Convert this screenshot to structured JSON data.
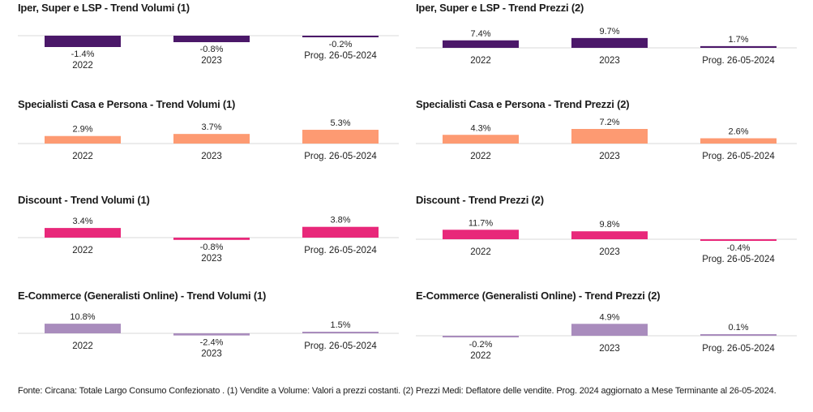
{
  "footer": "Fonte: Circana: Totale Largo Consumo Confezionato . (1) Vendite a Volume: Valori a prezzi costanti. (2) Prezzi Medi: Deflatore delle vendite. Prog. 2024 aggiornato a Mese Terminante al 26-05-2024.",
  "chart_data": [
    {
      "type": "bar",
      "title": "Iper, Super e LSP - Trend Volumi (1)",
      "categories": [
        "2022",
        "2023",
        "Prog. 26-05-2024"
      ],
      "values": [
        -1.4,
        -0.8,
        -0.2
      ],
      "labels": [
        "-1.4%",
        "-0.8%",
        "-0.2%"
      ],
      "color": "#4b1869"
    },
    {
      "type": "bar",
      "title": "Iper, Super e LSP - Trend Prezzi (2)",
      "categories": [
        "2022",
        "2023",
        "Prog. 26-05-2024"
      ],
      "values": [
        7.4,
        9.7,
        1.7
      ],
      "labels": [
        "7.4%",
        "9.7%",
        "1.7%"
      ],
      "color": "#4b1869"
    },
    {
      "type": "bar",
      "title": "Specialisti Casa e Persona - Trend Volumi (1)",
      "categories": [
        "2022",
        "2023",
        "Prog. 26-05-2024"
      ],
      "values": [
        2.9,
        3.7,
        5.3
      ],
      "labels": [
        "2.9%",
        "3.7%",
        "5.3%"
      ],
      "color": "#fd9a72"
    },
    {
      "type": "bar",
      "title": "Specialisti Casa e Persona - Trend Prezzi (2)",
      "categories": [
        "2022",
        "2023",
        "Prog. 26-05-2024"
      ],
      "values": [
        4.3,
        7.2,
        2.6
      ],
      "labels": [
        "4.3%",
        "7.2%",
        "2.6%"
      ],
      "color": "#fd9a72"
    },
    {
      "type": "bar",
      "title": "Discount - Trend Volumi (1)",
      "categories": [
        "2022",
        "2023",
        "Prog. 26-05-2024"
      ],
      "values": [
        3.4,
        -0.8,
        3.8
      ],
      "labels": [
        "3.4%",
        "-0.8%",
        "3.8%"
      ],
      "color": "#e8287a"
    },
    {
      "type": "bar",
      "title": "Discount - Trend Prezzi (2)",
      "categories": [
        "2022",
        "2023",
        "Prog. 26-05-2024"
      ],
      "values": [
        11.7,
        9.8,
        -0.4
      ],
      "labels": [
        "11.7%",
        "9.8%",
        "-0.4%"
      ],
      "color": "#e8287a"
    },
    {
      "type": "bar",
      "title": "E-Commerce (Generalisti Online) - Trend Volumi (1)",
      "categories": [
        "2022",
        "2023",
        "Prog. 26-05-2024"
      ],
      "values": [
        10.8,
        -2.4,
        1.5
      ],
      "labels": [
        "10.8%",
        "-2.4%",
        "1.5%"
      ],
      "color": "#a98cbd"
    },
    {
      "type": "bar",
      "title": "E-Commerce (Generalisti Online) - Trend Prezzi (2)",
      "categories": [
        "2022",
        "2023",
        "Prog. 26-05-2024"
      ],
      "values": [
        -0.2,
        4.9,
        0.1
      ],
      "labels": [
        "-0.2%",
        "4.9%",
        "0.1%"
      ],
      "color": "#a98cbd"
    }
  ]
}
